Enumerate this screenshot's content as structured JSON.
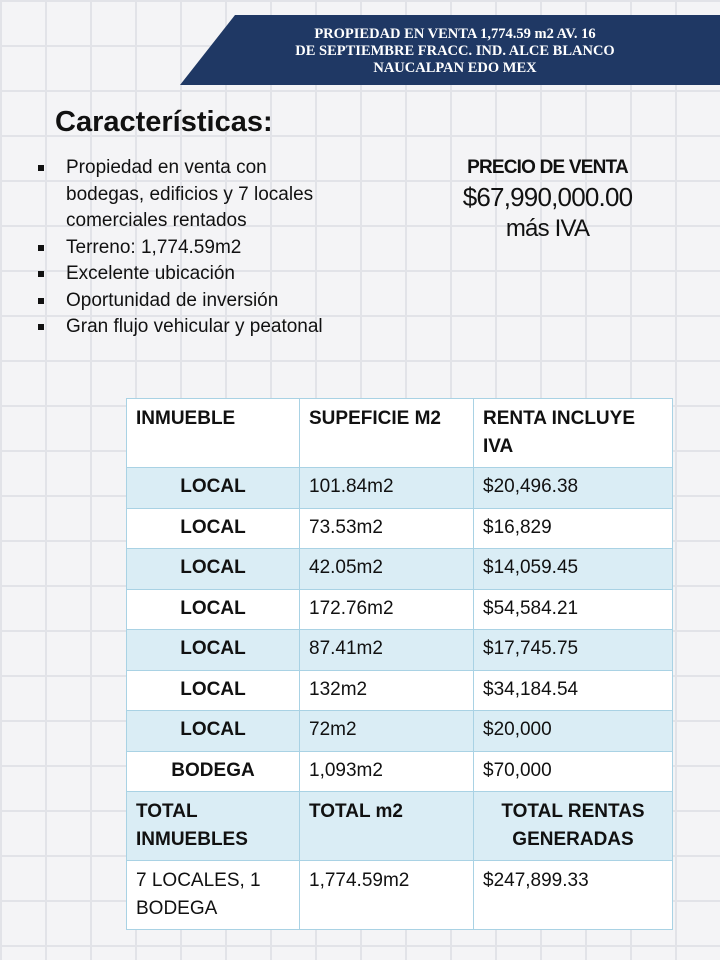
{
  "header": {
    "title_lines": [
      "PROPIEDAD EN VENTA 1,774.59 m2  AV. 16",
      "DE SEPTIEMBRE FRACC. IND. ALCE BLANCO",
      "NAUCALPAN EDO MEX"
    ]
  },
  "features": {
    "title": "Características:",
    "items": [
      "Propiedad en venta con bodegas, edificios y 7 locales comerciales rentados",
      "Terreno: 1,774.59m2",
      "Excelente ubicación",
      "Oportunidad de inversión",
      "Gran flujo vehicular y peatonal"
    ]
  },
  "price": {
    "label": "PRECIO DE VENTA",
    "amount": "$67,990,000.00",
    "note": "más IVA"
  },
  "table": {
    "header": [
      "INMUEBLE",
      "SUPEFICIE M2",
      "RENTA INCLUYE IVA"
    ],
    "rows": [
      [
        "LOCAL",
        "101.84m2",
        "$20,496.38"
      ],
      [
        "LOCAL",
        "73.53m2",
        "$16,829"
      ],
      [
        "LOCAL",
        "42.05m2",
        "$14,059.45"
      ],
      [
        "LOCAL",
        "172.76m2",
        "$54,584.21"
      ],
      [
        "LOCAL",
        "87.41m2",
        "$17,745.75"
      ],
      [
        "LOCAL",
        "132m2",
        "$34,184.54"
      ],
      [
        "LOCAL",
        "72m2",
        "$20,000"
      ],
      [
        "BODEGA",
        "1,093m2",
        "$70,000"
      ]
    ],
    "total_header": [
      "TOTAL INMUEBLES",
      "TOTAL m2",
      "TOTAL RENTAS GENERADAS"
    ],
    "total_row": [
      "7 LOCALES, 1 BODEGA",
      "1,774.59m2",
      "$247,899.33"
    ]
  }
}
